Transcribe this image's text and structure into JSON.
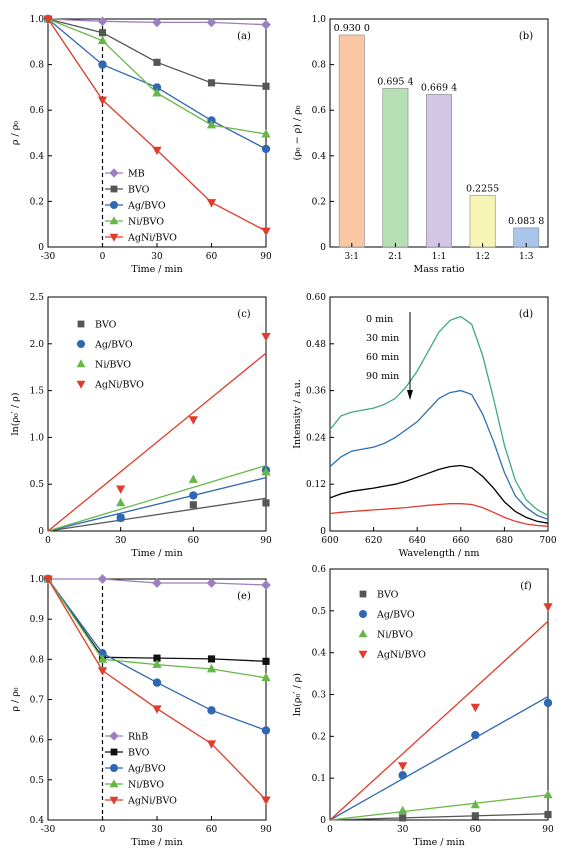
{
  "chart_data": [
    {
      "id": "a",
      "type": "line",
      "panel_label": "(a)",
      "xlabel": "Time / min",
      "ylabel": "ρ / ρ₀",
      "xlim": [
        -30,
        90
      ],
      "ylim": [
        0,
        1.0
      ],
      "xticks": [
        -30,
        0,
        30,
        60,
        90
      ],
      "yticks": [
        0,
        0.2,
        0.4,
        0.6,
        0.8,
        1.0
      ],
      "yticklabels": [
        "0",
        "0.2",
        "0.4",
        "0.6",
        "0.8",
        "1.0"
      ],
      "vline_x": 0,
      "legend_position": "bottom-left",
      "series": [
        {
          "name": "MB",
          "color": "#9b7fc1",
          "marker": "diamond",
          "x": [
            -30,
            0,
            30,
            60,
            90
          ],
          "y": [
            1.0,
            0.99,
            0.985,
            0.985,
            0.975
          ]
        },
        {
          "name": "BVO",
          "color": "#555555",
          "marker": "square",
          "x": [
            -30,
            0,
            30,
            60,
            90
          ],
          "y": [
            1.0,
            0.94,
            0.81,
            0.72,
            0.705
          ]
        },
        {
          "name": "Ag/BVO",
          "color": "#2f67b1",
          "marker": "circle",
          "x": [
            -30,
            0,
            30,
            60,
            90
          ],
          "y": [
            1.0,
            0.8,
            0.7,
            0.555,
            0.43
          ]
        },
        {
          "name": "Ni/BVO",
          "color": "#67b648",
          "marker": "triangle-up",
          "x": [
            -30,
            0,
            30,
            60,
            90
          ],
          "y": [
            1.0,
            0.905,
            0.675,
            0.535,
            0.495
          ]
        },
        {
          "name": "AgNi/BVO",
          "color": "#e03b2b",
          "marker": "triangle-down",
          "x": [
            -30,
            0,
            30,
            60,
            90
          ],
          "y": [
            1.0,
            0.645,
            0.425,
            0.195,
            0.07
          ]
        }
      ]
    },
    {
      "id": "b",
      "type": "bar",
      "panel_label": "(b)",
      "xlabel": "Mass ratio",
      "ylabel": "(ρ₀ − ρ) / ρ₀",
      "ylim": [
        0,
        1.0
      ],
      "yticks": [
        0,
        0.2,
        0.4,
        0.6,
        0.8,
        1.0
      ],
      "yticklabels": [
        "0",
        "0.2",
        "0.4",
        "0.6",
        "0.8",
        "1.0"
      ],
      "categories": [
        "3:1",
        "2:1",
        "1:1",
        "1:2",
        "1:3"
      ],
      "values": [
        0.93,
        0.6954,
        0.6694,
        0.2255,
        0.0838
      ],
      "value_labels": [
        "0.930 0",
        "0.695 4",
        "0.669 4",
        "0.2255",
        "0.083 8"
      ],
      "colors": [
        "#f9c7a3",
        "#b6dfb4",
        "#d3c5e5",
        "#f7f5b5",
        "#a9c5ea"
      ]
    },
    {
      "id": "c",
      "type": "scatter",
      "panel_label": "(c)",
      "xlabel": "Time / min",
      "ylabel": "ln(ρ₀′ / ρ)",
      "xlim": [
        0,
        90
      ],
      "ylim": [
        0,
        2.5
      ],
      "xticks": [
        0,
        30,
        60,
        90
      ],
      "yticks": [
        0,
        0.5,
        1.0,
        1.5,
        2.0,
        2.5
      ],
      "yticklabels": [
        "0",
        "0.5",
        "1.0",
        "1.5",
        "2.0",
        "2.5"
      ],
      "legend_position": "top-left",
      "series": [
        {
          "name": "BVO",
          "color": "#555555",
          "marker": "square",
          "x": [
            0,
            30,
            60,
            90
          ],
          "y": [
            0,
            0.14,
            0.28,
            0.3
          ],
          "fit": [
            0,
            0.35
          ]
        },
        {
          "name": "Ag/BVO",
          "color": "#2f67b1",
          "marker": "circle",
          "x": [
            0,
            30,
            60,
            90
          ],
          "y": [
            0,
            0.14,
            0.38,
            0.65
          ],
          "fit": [
            0,
            0.57
          ]
        },
        {
          "name": "Ni/BVO",
          "color": "#67b648",
          "marker": "triangle-up",
          "x": [
            0,
            30,
            60,
            90
          ],
          "y": [
            0,
            0.3,
            0.55,
            0.63
          ],
          "fit": [
            0,
            0.7
          ]
        },
        {
          "name": "AgNi/BVO",
          "color": "#e03b2b",
          "marker": "triangle-down",
          "x": [
            0,
            30,
            60,
            90
          ],
          "y": [
            0,
            0.45,
            1.19,
            2.08
          ],
          "fit": [
            0,
            1.9
          ]
        }
      ]
    },
    {
      "id": "d",
      "type": "line",
      "panel_label": "(d)",
      "xlabel": "Wavelength / nm",
      "ylabel": "Intensity / a.u.",
      "xlim": [
        600,
        700
      ],
      "ylim": [
        0,
        0.6
      ],
      "xticks": [
        600,
        620,
        640,
        660,
        680,
        700
      ],
      "yticks": [
        0,
        0.12,
        0.24,
        0.36,
        0.48,
        0.6
      ],
      "yticklabels": [
        "0",
        "0.12",
        "0.24",
        "0.36",
        "0.48",
        "0.60"
      ],
      "time_labels": [
        "0 min",
        "30 min",
        "60 min",
        "90 min"
      ],
      "series": [
        {
          "name": "0 min",
          "color": "#3fa97a",
          "x": [
            600,
            605,
            610,
            615,
            620,
            625,
            630,
            635,
            640,
            645,
            650,
            655,
            660,
            665,
            670,
            675,
            680,
            685,
            690,
            695,
            700
          ],
          "y": [
            0.26,
            0.295,
            0.305,
            0.31,
            0.315,
            0.325,
            0.34,
            0.37,
            0.41,
            0.46,
            0.51,
            0.54,
            0.55,
            0.53,
            0.45,
            0.34,
            0.22,
            0.13,
            0.08,
            0.055,
            0.04
          ]
        },
        {
          "name": "30 min",
          "color": "#2f6fb0",
          "x": [
            600,
            605,
            610,
            615,
            620,
            625,
            630,
            635,
            640,
            645,
            650,
            655,
            660,
            665,
            670,
            675,
            680,
            685,
            690,
            695,
            700
          ],
          "y": [
            0.165,
            0.19,
            0.205,
            0.21,
            0.215,
            0.225,
            0.24,
            0.26,
            0.28,
            0.31,
            0.34,
            0.355,
            0.36,
            0.35,
            0.3,
            0.23,
            0.15,
            0.09,
            0.06,
            0.04,
            0.03
          ]
        },
        {
          "name": "60 min",
          "color": "#000000",
          "x": [
            600,
            605,
            610,
            615,
            620,
            625,
            630,
            635,
            640,
            645,
            650,
            655,
            660,
            665,
            670,
            675,
            680,
            685,
            690,
            695,
            700
          ],
          "y": [
            0.085,
            0.095,
            0.102,
            0.106,
            0.11,
            0.115,
            0.12,
            0.128,
            0.138,
            0.148,
            0.158,
            0.165,
            0.168,
            0.162,
            0.14,
            0.11,
            0.075,
            0.05,
            0.035,
            0.025,
            0.02
          ]
        },
        {
          "name": "90 min",
          "color": "#e03b2b",
          "x": [
            600,
            605,
            610,
            615,
            620,
            625,
            630,
            635,
            640,
            645,
            650,
            655,
            660,
            665,
            670,
            675,
            680,
            685,
            690,
            695,
            700
          ],
          "y": [
            0.045,
            0.048,
            0.05,
            0.052,
            0.054,
            0.056,
            0.058,
            0.06,
            0.063,
            0.066,
            0.068,
            0.07,
            0.07,
            0.068,
            0.06,
            0.048,
            0.035,
            0.025,
            0.018,
            0.014,
            0.012
          ]
        }
      ]
    },
    {
      "id": "e",
      "type": "line",
      "panel_label": "(e)",
      "xlabel": "Time / min",
      "ylabel": "ρ / ρ₀",
      "xlim": [
        -30,
        90
      ],
      "ylim": [
        0.4,
        1.0
      ],
      "xticks": [
        -30,
        0,
        30,
        60,
        90
      ],
      "yticks": [
        0.4,
        0.5,
        0.6,
        0.7,
        0.8,
        0.9,
        1.0
      ],
      "yticklabels": [
        "0.4",
        "0.5",
        "0.6",
        "0.7",
        "0.8",
        "0.9",
        "1.0"
      ],
      "vline_x": 0,
      "legend_position": "bottom-left",
      "series": [
        {
          "name": "RhB",
          "color": "#9b7fc1",
          "marker": "diamond",
          "x": [
            -30,
            0,
            30,
            60,
            90
          ],
          "y": [
            1.0,
            1.0,
            0.99,
            0.99,
            0.985
          ]
        },
        {
          "name": "BVO",
          "color": "#111111",
          "marker": "square",
          "x": [
            -30,
            0,
            30,
            60,
            90
          ],
          "y": [
            1.0,
            0.805,
            0.803,
            0.801,
            0.795
          ]
        },
        {
          "name": "Ag/BVO",
          "color": "#2f67b1",
          "marker": "circle",
          "x": [
            -30,
            0,
            30,
            60,
            90
          ],
          "y": [
            1.0,
            0.815,
            0.742,
            0.673,
            0.623
          ]
        },
        {
          "name": "Ni/BVO",
          "color": "#67b648",
          "marker": "triangle-up",
          "x": [
            -30,
            0,
            30,
            60,
            90
          ],
          "y": [
            1.0,
            0.8,
            0.787,
            0.776,
            0.754
          ]
        },
        {
          "name": "AgNi/BVO",
          "color": "#e03b2b",
          "marker": "triangle-down",
          "x": [
            -30,
            0,
            30,
            60,
            90
          ],
          "y": [
            1.0,
            0.772,
            0.677,
            0.59,
            0.45
          ]
        }
      ]
    },
    {
      "id": "f",
      "type": "scatter",
      "panel_label": "(f)",
      "xlabel": "Time / min",
      "ylabel": "ln(ρ₀′ / ρ)",
      "xlim": [
        0,
        90
      ],
      "ylim": [
        0,
        0.6
      ],
      "xticks": [
        0,
        30,
        60,
        90
      ],
      "yticks": [
        0,
        0.1,
        0.2,
        0.3,
        0.4,
        0.5,
        0.6
      ],
      "yticklabels": [
        "0",
        "0.1",
        "0.2",
        "0.3",
        "0.4",
        "0.5",
        "0.6"
      ],
      "legend_position": "top-left",
      "series": [
        {
          "name": "BVO",
          "color": "#555555",
          "marker": "square",
          "x": [
            0,
            30,
            60,
            90
          ],
          "y": [
            0,
            0.005,
            0.01,
            0.013
          ],
          "fit": [
            0,
            0.015
          ]
        },
        {
          "name": "Ag/BVO",
          "color": "#2f67b1",
          "marker": "circle",
          "x": [
            0,
            30,
            60,
            90
          ],
          "y": [
            0,
            0.107,
            0.203,
            0.28
          ],
          "fit": [
            0,
            0.295
          ]
        },
        {
          "name": "Ni/BVO",
          "color": "#67b648",
          "marker": "triangle-up",
          "x": [
            0,
            30,
            60,
            90
          ],
          "y": [
            0,
            0.022,
            0.036,
            0.06
          ],
          "fit": [
            0,
            0.06
          ]
        },
        {
          "name": "AgNi/BVO",
          "color": "#e03b2b",
          "marker": "triangle-down",
          "x": [
            0,
            30,
            60,
            90
          ],
          "y": [
            0,
            0.13,
            0.27,
            0.51
          ],
          "fit": [
            0,
            0.475
          ]
        }
      ]
    }
  ]
}
